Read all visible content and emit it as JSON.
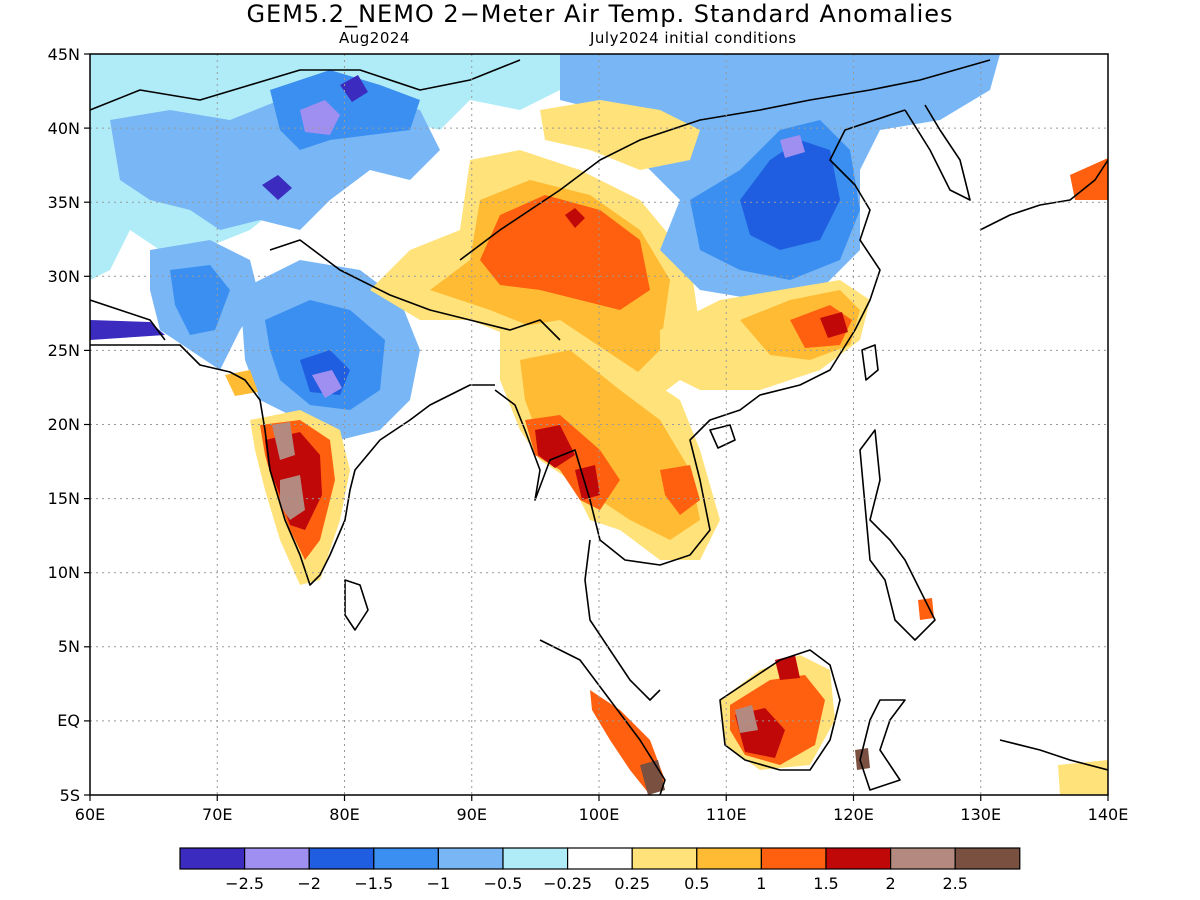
{
  "title": "GEM5.2_NEMO 2−Meter Air Temp. Standard Anomalies",
  "subtitle_left": "Aug2024",
  "subtitle_right": "July2024 initial conditions",
  "map": {
    "lon_range": [
      60,
      140
    ],
    "lat_range": [
      -5,
      45
    ],
    "x_ticks": [
      "60E",
      "70E",
      "80E",
      "90E",
      "100E",
      "110E",
      "120E",
      "130E",
      "140E"
    ],
    "y_ticks": [
      "45N",
      "40N",
      "35N",
      "30N",
      "25N",
      "20N",
      "15N",
      "10N",
      "5N",
      "EQ",
      "5S"
    ],
    "grid": "dotted",
    "coastlines": true
  },
  "colorbar": {
    "colors": [
      "#3b2bbf",
      "#9f8ff0",
      "#1f5ee0",
      "#3a8ff0",
      "#78b6f5",
      "#b0ecf8",
      "#ffffff",
      "#ffe27a",
      "#ffbb33",
      "#ff6010",
      "#c00808",
      "#b48a80",
      "#7a5040"
    ],
    "labels": [
      "−2.5",
      "−2",
      "−1.5",
      "−1",
      "−0.5",
      "−0.25",
      "0.25",
      "0.5",
      "1",
      "1.5",
      "2",
      "2.5"
    ]
  },
  "regions": [
    {
      "name": "Central Asia / Kazakhstan",
      "level": -0.5,
      "color": "#b0ecf8"
    },
    {
      "name": "Afghanistan / Pakistan",
      "level": -1.0,
      "color": "#3a8ff0"
    },
    {
      "name": "Central India",
      "level": -1.25,
      "color": "#3a8ff0"
    },
    {
      "name": "Tibetan Plateau",
      "level": 1.25,
      "color": "#ff6010"
    },
    {
      "name": "North China / Mongolia",
      "level": -1.25,
      "color": "#3a8ff0"
    },
    {
      "name": "Western Ghats India",
      "level": 2.0,
      "color": "#c00808"
    },
    {
      "name": "Myanmar / Thailand / Indochina",
      "level": 1.25,
      "color": "#ff6010"
    },
    {
      "name": "South China",
      "level": 1.0,
      "color": "#ffbb33"
    },
    {
      "name": "Borneo",
      "level": 1.75,
      "color": "#c00808"
    },
    {
      "name": "Sumatra",
      "level": 1.5,
      "color": "#ff6010"
    },
    {
      "name": "Japan (south)",
      "level": 1.5,
      "color": "#ff6010"
    }
  ]
}
